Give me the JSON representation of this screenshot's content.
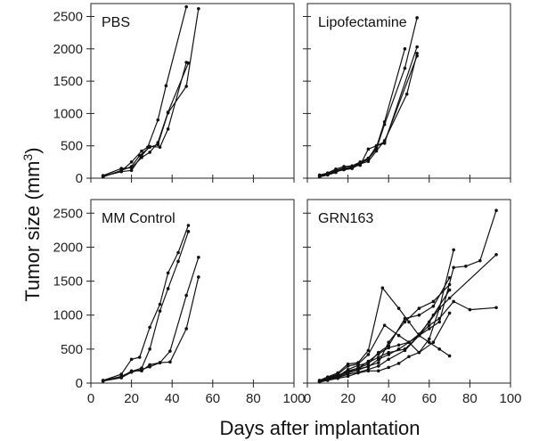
{
  "figure": {
    "xlabel": "Days after implantation",
    "ylabel_main": "Tumor size (mm",
    "ylabel_sup": "3",
    "ylabel_close": ")"
  },
  "chart_data": [
    {
      "type": "line",
      "title": "PBS",
      "xlim": [
        0,
        100
      ],
      "ylim": [
        0,
        2700
      ],
      "xticks": [
        "0",
        "20",
        "40",
        "60",
        "80",
        "100"
      ],
      "yticks": [
        "0",
        "500",
        "1000",
        "1500",
        "2000",
        "2500"
      ],
      "series": [
        {
          "x": [
            6,
            15,
            20,
            25,
            28,
            33,
            37,
            47
          ],
          "y": [
            30,
            110,
            250,
            420,
            480,
            900,
            1430,
            2650
          ]
        },
        {
          "x": [
            6,
            15,
            20,
            25,
            29,
            33,
            38,
            48
          ],
          "y": [
            40,
            150,
            160,
            320,
            400,
            550,
            1020,
            1780
          ]
        },
        {
          "x": [
            6,
            15,
            20,
            24,
            29,
            33,
            38,
            47,
            53
          ],
          "y": [
            20,
            120,
            180,
            350,
            480,
            520,
            1010,
            1420,
            2620
          ]
        },
        {
          "x": [
            6,
            15,
            20,
            25,
            29,
            34,
            38,
            47
          ],
          "y": [
            30,
            100,
            120,
            350,
            490,
            480,
            760,
            1790
          ]
        }
      ]
    },
    {
      "type": "line",
      "title": "Lipofectamine",
      "xlim": [
        0,
        100
      ],
      "ylim": [
        0,
        2700
      ],
      "xticks": [
        "0",
        "20",
        "40",
        "60",
        "80",
        "100"
      ],
      "yticks": [
        "0",
        "500",
        "1000",
        "1500",
        "2000",
        "2500"
      ],
      "series": [
        {
          "x": [
            6,
            10,
            14,
            18,
            22,
            26,
            30,
            34,
            38,
            48
          ],
          "y": [
            50,
            80,
            140,
            180,
            190,
            250,
            310,
            480,
            870,
            2000
          ]
        },
        {
          "x": [
            6,
            10,
            14,
            18,
            22,
            26,
            30,
            34,
            38,
            48,
            54
          ],
          "y": [
            40,
            70,
            120,
            160,
            170,
            240,
            300,
            450,
            830,
            1700,
            2480
          ]
        },
        {
          "x": [
            6,
            10,
            14,
            18,
            22,
            26,
            30,
            34,
            38,
            49,
            54
          ],
          "y": [
            30,
            60,
            100,
            130,
            150,
            220,
            260,
            420,
            580,
            1300,
            1930
          ]
        },
        {
          "x": [
            6,
            10,
            14,
            18,
            22,
            26,
            30,
            34,
            38,
            54
          ],
          "y": [
            35,
            55,
            110,
            140,
            160,
            230,
            290,
            500,
            540,
            2030
          ]
        },
        {
          "x": [
            6,
            10,
            14,
            18,
            22,
            26,
            30,
            34,
            38,
            54
          ],
          "y": [
            20,
            50,
            90,
            150,
            180,
            200,
            450,
            500,
            560,
            1890
          ]
        }
      ]
    },
    {
      "type": "line",
      "title": "MM Control",
      "xlim": [
        0,
        100
      ],
      "ylim": [
        0,
        2700
      ],
      "xticks": [
        "0",
        "20",
        "40",
        "60",
        "80",
        "100"
      ],
      "yticks": [
        "0",
        "500",
        "1000",
        "1500",
        "2000",
        "2500"
      ],
      "series": [
        {
          "x": [
            6,
            15,
            20,
            24,
            29,
            34,
            38,
            43,
            48
          ],
          "y": [
            40,
            130,
            350,
            380,
            820,
            1160,
            1620,
            1920,
            2320
          ]
        },
        {
          "x": [
            6,
            15,
            20,
            25,
            29,
            34,
            38,
            43,
            48
          ],
          "y": [
            35,
            100,
            170,
            220,
            500,
            1060,
            1390,
            1790,
            2230
          ]
        },
        {
          "x": [
            6,
            15,
            20,
            25,
            29,
            34,
            39,
            47,
            53
          ],
          "y": [
            30,
            80,
            180,
            180,
            270,
            300,
            470,
            1290,
            1850
          ]
        },
        {
          "x": [
            6,
            15,
            20,
            25,
            29,
            34,
            39,
            47,
            53
          ],
          "y": [
            30,
            80,
            160,
            200,
            240,
            300,
            310,
            800,
            1560
          ]
        }
      ]
    },
    {
      "type": "line",
      "title": "GRN163",
      "xlim": [
        0,
        100
      ],
      "ylim": [
        0,
        2700
      ],
      "xticks": [
        "0",
        "20",
        "40",
        "60",
        "80",
        "100"
      ],
      "yticks": [
        "0",
        "500",
        "1000",
        "1500",
        "2000",
        "2500"
      ],
      "series": [
        {
          "x": [
            6,
            10,
            15,
            20,
            25,
            30,
            37,
            45,
            50,
            55,
            60,
            65,
            70
          ],
          "y": [
            40,
            90,
            150,
            280,
            300,
            480,
            1400,
            1100,
            900,
            700,
            600,
            500,
            400
          ]
        },
        {
          "x": [
            6,
            10,
            15,
            20,
            25,
            30,
            38,
            45,
            50,
            55,
            60,
            65,
            72
          ],
          "y": [
            30,
            80,
            130,
            250,
            280,
            420,
            850,
            700,
            600,
            450,
            650,
            1100,
            1960
          ]
        },
        {
          "x": [
            6,
            10,
            15,
            20,
            25,
            30,
            35,
            40,
            48,
            55,
            60,
            65,
            72,
            78,
            85,
            93
          ],
          "y": [
            20,
            60,
            100,
            200,
            260,
            300,
            380,
            450,
            500,
            700,
            800,
            900,
            1700,
            1720,
            1800,
            2540
          ]
        },
        {
          "x": [
            6,
            10,
            15,
            20,
            25,
            30,
            35,
            40,
            45,
            50,
            55,
            60,
            65,
            72,
            80,
            93
          ],
          "y": [
            30,
            50,
            100,
            180,
            220,
            320,
            430,
            520,
            560,
            600,
            700,
            850,
            950,
            1200,
            1080,
            1110
          ]
        },
        {
          "x": [
            6,
            10,
            15,
            20,
            25,
            30,
            35,
            40,
            45,
            50,
            55,
            60,
            65,
            70,
            93
          ],
          "y": [
            25,
            70,
            110,
            170,
            210,
            240,
            350,
            420,
            500,
            600,
            720,
            900,
            1100,
            1250,
            1890
          ]
        },
        {
          "x": [
            6,
            10,
            15,
            20,
            25,
            30,
            35,
            40,
            48,
            55,
            62,
            70
          ],
          "y": [
            35,
            60,
            120,
            160,
            220,
            280,
            450,
            550,
            950,
            1000,
            1130,
            1550
          ]
        },
        {
          "x": [
            6,
            10,
            15,
            20,
            25,
            30,
            35,
            40,
            48,
            55,
            62,
            70
          ],
          "y": [
            20,
            50,
            90,
            150,
            190,
            250,
            300,
            600,
            900,
            1100,
            1200,
            1450
          ]
        },
        {
          "x": [
            6,
            10,
            15,
            20,
            25,
            30,
            35,
            40,
            48,
            55,
            62,
            70
          ],
          "y": [
            30,
            60,
            80,
            130,
            160,
            200,
            250,
            350,
            480,
            700,
            1000,
            1370
          ]
        },
        {
          "x": [
            6,
            10,
            15,
            20,
            25,
            30,
            35,
            40,
            45,
            50,
            55,
            62,
            70
          ],
          "y": [
            15,
            40,
            70,
            100,
            150,
            180,
            180,
            230,
            290,
            390,
            450,
            600,
            1030
          ]
        }
      ]
    }
  ]
}
